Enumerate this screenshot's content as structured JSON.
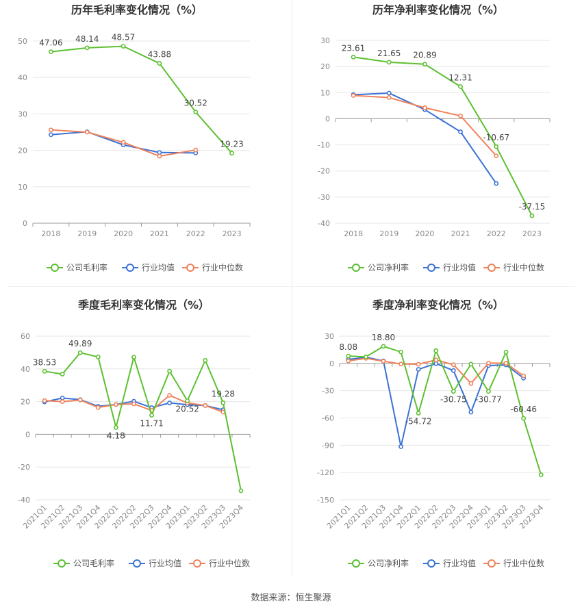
{
  "footer": "数据来源：恒生聚源",
  "colors": {
    "company": "#5cc030",
    "avg": "#3b72d6",
    "median": "#f0825a",
    "grid": "#e6e6e6",
    "axis": "#999999",
    "title": "#333333"
  },
  "chart_data": [
    {
      "type": "line",
      "title": "历年毛利率变化情况（%）",
      "categories": [
        "2018",
        "2019",
        "2020",
        "2021",
        "2022",
        "2023"
      ],
      "ylim": [
        0,
        50
      ],
      "yticks": [
        0,
        10,
        20,
        30,
        40,
        50
      ],
      "grid": true,
      "legend_position": "bottom",
      "series": [
        {
          "name": "公司毛利率",
          "key": "company",
          "values": [
            47.06,
            48.14,
            48.57,
            43.88,
            30.52,
            19.23
          ],
          "labels": [
            "47.06",
            "48.14",
            "48.57",
            "43.88",
            "30.52",
            "19.23"
          ]
        },
        {
          "name": "行业均值",
          "key": "avg",
          "values": [
            24.3,
            25.1,
            21.5,
            19.4,
            19.3,
            null
          ]
        },
        {
          "name": "行业中位数",
          "key": "median",
          "values": [
            25.6,
            25.0,
            22.2,
            18.4,
            20.1,
            null
          ]
        }
      ]
    },
    {
      "type": "line",
      "title": "历年净利率变化情况（%）",
      "categories": [
        "2018",
        "2019",
        "2020",
        "2021",
        "2022",
        "2023"
      ],
      "ylim": [
        -40,
        30
      ],
      "yticks": [
        -40,
        -30,
        -20,
        -10,
        0,
        10,
        20,
        30
      ],
      "grid": true,
      "legend_position": "bottom",
      "series": [
        {
          "name": "公司净利率",
          "key": "company",
          "values": [
            23.61,
            21.65,
            20.89,
            12.31,
            -10.67,
            -37.15
          ],
          "labels": [
            "23.61",
            "21.65",
            "20.89",
            "12.31",
            "-10.67",
            "-37.15"
          ]
        },
        {
          "name": "行业均值",
          "key": "avg",
          "values": [
            9.2,
            9.8,
            3.5,
            -5.0,
            -24.8,
            null
          ]
        },
        {
          "name": "行业中位数",
          "key": "median",
          "values": [
            8.9,
            8.1,
            4.2,
            1.1,
            -14.2,
            null
          ]
        }
      ]
    },
    {
      "type": "line",
      "title": "季度毛利率变化情况（%）",
      "categories": [
        "2021Q1",
        "2021Q2",
        "2021Q3",
        "2021Q4",
        "2022Q1",
        "2022Q2",
        "2022Q3",
        "2022Q4",
        "2023Q1",
        "2023Q2",
        "2023Q3",
        "2023Q4"
      ],
      "ylim": [
        -40,
        60
      ],
      "yticks": [
        -40,
        -20,
        0,
        20,
        40,
        60
      ],
      "grid": true,
      "legend_position": "bottom",
      "series": [
        {
          "name": "公司毛利率",
          "key": "company",
          "values": [
            38.53,
            36.8,
            49.89,
            47.3,
            4.18,
            47.2,
            11.71,
            38.6,
            20.52,
            45.2,
            19.28,
            -34.5
          ],
          "labels": [
            "38.53",
            "",
            "49.89",
            "",
            "4.18",
            "",
            "11.71",
            "",
            "20.52",
            "",
            "19.28",
            ""
          ]
        },
        {
          "name": "行业均值",
          "key": "avg",
          "values": [
            19.8,
            22.2,
            21.2,
            17.1,
            18.2,
            20.2,
            16.3,
            19.2,
            18.1,
            17.6,
            15.0,
            null
          ]
        },
        {
          "name": "行业中位数",
          "key": "median",
          "values": [
            20.6,
            20.0,
            21.0,
            16.4,
            18.2,
            18.6,
            14.6,
            23.8,
            19.2,
            17.6,
            13.6,
            null
          ]
        }
      ]
    },
    {
      "type": "line",
      "title": "季度净利率变化情况（%）",
      "categories": [
        "2021Q1",
        "2021Q2",
        "2021Q3",
        "2021Q4",
        "2022Q1",
        "2022Q2",
        "2022Q3",
        "2022Q4",
        "2023Q1",
        "2023Q2",
        "2023Q3",
        "2023Q4"
      ],
      "ylim": [
        -150,
        30
      ],
      "yticks": [
        -150,
        -120,
        -90,
        -60,
        -30,
        0,
        30
      ],
      "grid": true,
      "legend_position": "bottom",
      "series": [
        {
          "name": "公司净利率",
          "key": "company",
          "values": [
            8.08,
            7.2,
            18.8,
            12.6,
            -54.72,
            14.0,
            -30.75,
            -0.8,
            -30.77,
            12.4,
            -60.46,
            -122.5
          ],
          "labels": [
            "8.08",
            "",
            "18.80",
            "",
            "-54.72",
            "",
            "-30.75",
            "",
            "-30.77",
            "",
            "-60.46",
            ""
          ]
        },
        {
          "name": "行业均值",
          "key": "avg",
          "values": [
            4.3,
            6.8,
            2.8,
            -91.5,
            -6.5,
            -0.2,
            -7.8,
            -53.6,
            -2.4,
            -1.6,
            -16.2,
            null
          ]
        },
        {
          "name": "行业中位数",
          "key": "median",
          "values": [
            2.8,
            5.6,
            2.4,
            -0.6,
            -0.9,
            3.8,
            -1.4,
            -22.0,
            0.4,
            0.2,
            -13.6,
            null
          ]
        }
      ]
    }
  ]
}
